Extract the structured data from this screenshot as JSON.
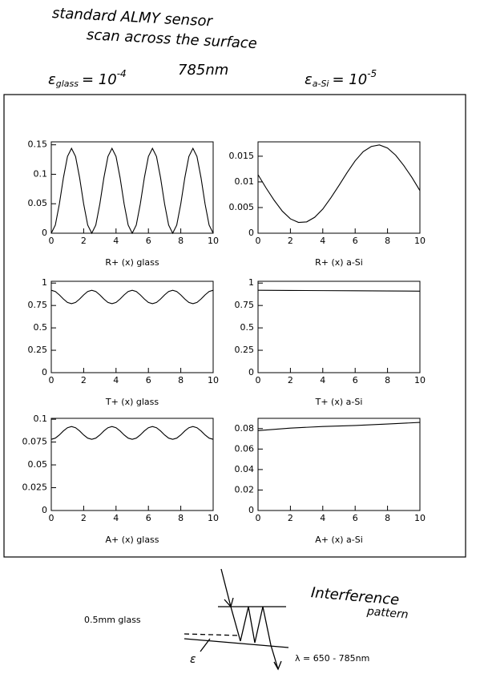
{
  "notes": {
    "title": "standard ALMY sensor",
    "subtitle": "scan across the surface",
    "epsilon_glass": {
      "symbol": "ε",
      "subscript": "glass",
      "base": "= 10",
      "exponent": "-4"
    },
    "wavelength": "785nm",
    "epsilon_asi": {
      "symbol": "ε",
      "subscript": "a-Si",
      "base": "= 10",
      "exponent": "-5"
    }
  },
  "diagram": {
    "heading": "Interference",
    "heading2": "pattern",
    "glass_label": "0.5mm glass",
    "epsilon_label": "ε",
    "lambda_label": "λ = 650 - 785nm"
  },
  "chart_data": [
    {
      "type": "line",
      "xlabel": "R+ (x) glass",
      "color": "#000000",
      "x": [
        0,
        0.25,
        0.5,
        0.75,
        1,
        1.25,
        1.5,
        1.75,
        2,
        2.25,
        2.5,
        2.75,
        3,
        3.25,
        3.5,
        3.75,
        4,
        4.25,
        4.5,
        4.75,
        5,
        5.25,
        5.5,
        5.75,
        6,
        6.25,
        6.5,
        6.75,
        7,
        7.25,
        7.5,
        7.75,
        8,
        8.25,
        8.5,
        8.75,
        9,
        9.25,
        9.5,
        9.75,
        10
      ],
      "values": [
        0,
        0.0138,
        0.0497,
        0.0942,
        0.1302,
        0.144,
        0.1302,
        0.0942,
        0.0497,
        0.0138,
        0,
        0.0138,
        0.0497,
        0.0942,
        0.1302,
        0.144,
        0.1302,
        0.0942,
        0.0497,
        0.0138,
        0,
        0.0138,
        0.0497,
        0.0942,
        0.1302,
        0.144,
        0.1302,
        0.0942,
        0.0497,
        0.0138,
        0,
        0.0138,
        0.0497,
        0.0942,
        0.1302,
        0.144,
        0.1302,
        0.0942,
        0.0497,
        0.0138,
        0
      ],
      "xlim": [
        0,
        10
      ],
      "ylim": [
        0,
        0.155
      ],
      "xticks": [
        0,
        2,
        4,
        6,
        8,
        10
      ],
      "yticks": [
        0,
        0.05,
        0.1,
        0.15
      ]
    },
    {
      "type": "line",
      "xlabel": "R+ (x) a-Si",
      "color": "#000000",
      "x": [
        0,
        0.5,
        1,
        1.5,
        2,
        2.5,
        3,
        3.5,
        4,
        4.5,
        5,
        5.5,
        6,
        6.5,
        7,
        7.5,
        8,
        8.5,
        9,
        9.5,
        10
      ],
      "values": [
        0.0114,
        0.0088,
        0.0064,
        0.0043,
        0.0028,
        0.0021,
        0.0022,
        0.0031,
        0.0047,
        0.0069,
        0.0093,
        0.0118,
        0.0141,
        0.0159,
        0.0169,
        0.0172,
        0.0166,
        0.0152,
        0.0132,
        0.0109,
        0.0083
      ],
      "xlim": [
        0,
        10
      ],
      "ylim": [
        0,
        0.0178
      ],
      "xticks": [
        0,
        2,
        4,
        6,
        8,
        10
      ],
      "yticks": [
        0,
        0.005,
        0.01,
        0.015
      ]
    },
    {
      "type": "line",
      "xlabel": "T+ (x) glass",
      "color": "#000000",
      "x": [
        0,
        0.25,
        0.5,
        0.75,
        1,
        1.25,
        1.5,
        1.75,
        2,
        2.25,
        2.5,
        2.75,
        3,
        3.25,
        3.5,
        3.75,
        4,
        4.25,
        4.5,
        4.75,
        5,
        5.25,
        5.5,
        5.75,
        6,
        6.25,
        6.5,
        6.75,
        7,
        7.25,
        7.5,
        7.75,
        8,
        8.25,
        8.5,
        8.75,
        9,
        9.25,
        9.5,
        9.75,
        10
      ],
      "values": [
        0.92,
        0.906,
        0.868,
        0.822,
        0.784,
        0.77,
        0.784,
        0.822,
        0.868,
        0.906,
        0.92,
        0.906,
        0.868,
        0.822,
        0.784,
        0.77,
        0.784,
        0.822,
        0.868,
        0.906,
        0.92,
        0.906,
        0.868,
        0.822,
        0.784,
        0.77,
        0.784,
        0.822,
        0.868,
        0.906,
        0.92,
        0.906,
        0.868,
        0.822,
        0.784,
        0.77,
        0.784,
        0.822,
        0.868,
        0.906,
        0.92
      ],
      "xlim": [
        0,
        10
      ],
      "ylim": [
        0,
        1.02
      ],
      "xticks": [
        0,
        2,
        4,
        6,
        8,
        10
      ],
      "yticks": [
        0,
        0.25,
        0.5,
        0.75,
        1
      ]
    },
    {
      "type": "line",
      "xlabel": "T+ (x) a-Si",
      "color": "#000000",
      "x": [
        0,
        2,
        4,
        6,
        8,
        10
      ],
      "values": [
        0.92,
        0.918,
        0.916,
        0.914,
        0.912,
        0.91
      ],
      "xlim": [
        0,
        10
      ],
      "ylim": [
        0,
        1.02
      ],
      "xticks": [
        0,
        2,
        4,
        6,
        8,
        10
      ],
      "yticks": [
        0,
        0.25,
        0.5,
        0.75,
        1
      ]
    },
    {
      "type": "line",
      "xlabel": "A+ (x) glass",
      "color": "#000000",
      "x": [
        0,
        0.25,
        0.5,
        0.75,
        1,
        1.25,
        1.5,
        1.75,
        2,
        2.25,
        2.5,
        2.75,
        3,
        3.25,
        3.5,
        3.75,
        4,
        4.25,
        4.5,
        4.75,
        5,
        5.25,
        5.5,
        5.75,
        6,
        6.25,
        6.5,
        6.75,
        7,
        7.25,
        7.5,
        7.75,
        8,
        8.25,
        8.5,
        8.75,
        9,
        9.25,
        9.5,
        9.75,
        10
      ],
      "values": [
        0.078,
        0.0793,
        0.0828,
        0.0872,
        0.0907,
        0.092,
        0.0907,
        0.0872,
        0.0828,
        0.0793,
        0.078,
        0.0793,
        0.0828,
        0.0872,
        0.0907,
        0.092,
        0.0907,
        0.0872,
        0.0828,
        0.0793,
        0.078,
        0.0793,
        0.0828,
        0.0872,
        0.0907,
        0.092,
        0.0907,
        0.0872,
        0.0828,
        0.0793,
        0.078,
        0.0793,
        0.0828,
        0.0872,
        0.0907,
        0.092,
        0.0907,
        0.0872,
        0.0828,
        0.0793,
        0.078
      ],
      "xlim": [
        0,
        10
      ],
      "ylim": [
        0,
        0.101
      ],
      "xticks": [
        0,
        2,
        4,
        6,
        8,
        10
      ],
      "yticks": [
        0,
        0.025,
        0.05,
        0.075,
        0.1
      ]
    },
    {
      "type": "line",
      "xlabel": "A+ (x) a-Si",
      "color": "#000000",
      "x": [
        0,
        2,
        4,
        6,
        8,
        10
      ],
      "values": [
        0.078,
        0.0805,
        0.082,
        0.083,
        0.0845,
        0.086
      ],
      "xlim": [
        0,
        10
      ],
      "ylim": [
        0,
        0.09
      ],
      "xticks": [
        0,
        2,
        4,
        6,
        8,
        10
      ],
      "yticks": [
        0,
        0.02,
        0.04,
        0.06,
        0.08
      ]
    }
  ]
}
